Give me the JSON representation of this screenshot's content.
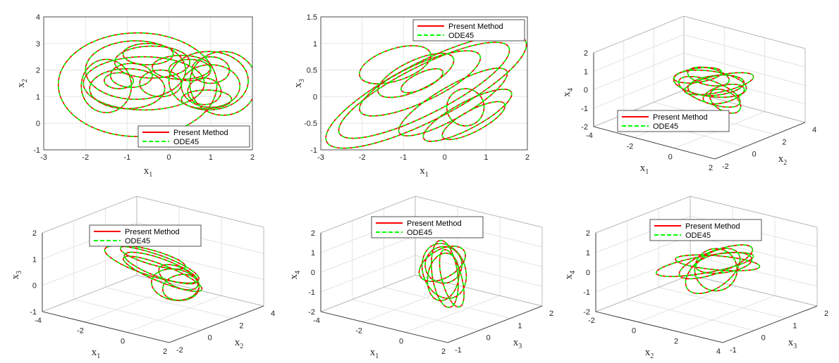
{
  "figure": {
    "legend_entries": [
      "Present Method",
      "ODE45"
    ],
    "colors": {
      "present": "#ff0000",
      "ode45": "#00ff00"
    }
  },
  "chart_data": [
    {
      "type": "line",
      "panel": "x1-x2",
      "xlabel": {
        "base": "x",
        "sub": "1"
      },
      "ylabel": {
        "base": "x",
        "sub": "2"
      },
      "xlim": [
        -3,
        2
      ],
      "ylim": [
        -1,
        4
      ],
      "xticks": [
        "-3",
        "-2",
        "-1",
        "0",
        "1",
        "2"
      ],
      "yticks": [
        "-1",
        "0",
        "1",
        "2",
        "3",
        "4"
      ],
      "grid": true,
      "legend": "bottom-right",
      "series": [
        {
          "name": "Present Method",
          "color": "#ff0000",
          "style": "solid"
        },
        {
          "name": "ODE45",
          "color": "#00ff00",
          "style": "dashed"
        }
      ],
      "loops": [
        {
          "cx": -0.75,
          "cy": 1.45,
          "rx": 1.9,
          "ry": 1.95
        },
        {
          "cx": -0.8,
          "cy": 2.0,
          "rx": 1.2,
          "ry": 1.1
        },
        {
          "cx": -0.6,
          "cy": 1.5,
          "rx": 1.45,
          "ry": 1.0
        },
        {
          "cx": -1.0,
          "cy": 1.3,
          "rx": 0.9,
          "ry": 0.75
        },
        {
          "cx": -0.9,
          "cy": 1.8,
          "rx": 0.5,
          "ry": 0.45
        },
        {
          "cx": -0.4,
          "cy": 2.3,
          "rx": 0.9,
          "ry": 0.6
        },
        {
          "cx": -1.2,
          "cy": 1.6,
          "rx": 0.35,
          "ry": 0.3
        },
        {
          "cx": 0.95,
          "cy": 1.6,
          "rx": 0.95,
          "ry": 1.1
        },
        {
          "cx": 1.0,
          "cy": 1.4,
          "rx": 0.7,
          "ry": 0.8
        },
        {
          "cx": 1.0,
          "cy": 2.0,
          "rx": 0.45,
          "ry": 0.5
        },
        {
          "cx": 0.5,
          "cy": 2.0,
          "rx": 0.5,
          "ry": 0.4
        },
        {
          "cx": 1.3,
          "cy": 1.5,
          "rx": 0.8,
          "ry": 1.2
        },
        {
          "cx": 0.3,
          "cy": 2.1,
          "rx": 0.7,
          "ry": 0.45
        },
        {
          "cx": -0.2,
          "cy": 1.5,
          "rx": 0.5,
          "ry": 0.5
        },
        {
          "cx": 0.85,
          "cy": 1.2,
          "rx": 0.4,
          "ry": 0.5
        },
        {
          "cx": -1.5,
          "cy": 1.4,
          "rx": 0.6,
          "ry": 1.0
        },
        {
          "cx": -0.5,
          "cy": 2.6,
          "rx": 0.6,
          "ry": 0.4
        },
        {
          "cx": 0.9,
          "cy": 0.9,
          "rx": 0.6,
          "ry": 0.35
        }
      ]
    },
    {
      "type": "line",
      "panel": "x1-x3",
      "xlabel": {
        "base": "x",
        "sub": "1"
      },
      "ylabel": {
        "base": "x",
        "sub": "3"
      },
      "xlim": [
        -3,
        2
      ],
      "ylim": [
        -1,
        1.5
      ],
      "xticks": [
        "-3",
        "-2",
        "-1",
        "0",
        "1",
        "2"
      ],
      "yticks": [
        "-1",
        "-0.5",
        "0",
        "0.5",
        "1",
        "1.5"
      ],
      "grid": true,
      "legend": "top-right",
      "series": [
        {
          "name": "Present Method",
          "color": "#ff0000",
          "style": "solid"
        },
        {
          "name": "ODE45",
          "color": "#00ff00",
          "style": "dashed"
        }
      ],
      "loops": [
        {
          "cx": -0.45,
          "cy": 0.1,
          "rx": 2.7,
          "ry": 0.55,
          "rot": -27
        },
        {
          "cx": -0.5,
          "cy": 0.12,
          "rx": 2.3,
          "ry": 0.45,
          "rot": -27
        },
        {
          "cx": -0.6,
          "cy": 0.25,
          "rx": 1.6,
          "ry": 0.35,
          "rot": -25
        },
        {
          "cx": -0.7,
          "cy": 0.4,
          "rx": 1.0,
          "ry": 0.28,
          "rot": -25
        },
        {
          "cx": -0.55,
          "cy": 0.3,
          "rx": 0.55,
          "ry": 0.15,
          "rot": -25
        },
        {
          "cx": 0.55,
          "cy": -0.35,
          "rx": 1.2,
          "ry": 0.25,
          "rot": -28
        },
        {
          "cx": 0.7,
          "cy": -0.45,
          "rx": 0.85,
          "ry": 0.2,
          "rot": -28
        },
        {
          "cx": 0.5,
          "cy": -0.2,
          "rx": 0.45,
          "ry": 0.35,
          "rot": 40
        },
        {
          "cx": -1.2,
          "cy": 0.6,
          "rx": 0.9,
          "ry": 0.3,
          "rot": -18
        },
        {
          "cx": 0.2,
          "cy": -0.1,
          "rx": 1.5,
          "ry": 0.3,
          "rot": -30
        }
      ]
    },
    {
      "type": "line",
      "panel": "x1-x2-x4",
      "xlabel": {
        "base": "x",
        "sub": "1"
      },
      "ylabel": {
        "base": "x",
        "sub": "2"
      },
      "zlabel": {
        "base": "x",
        "sub": "4"
      },
      "xlim": [
        -4,
        2
      ],
      "ylim": [
        -2,
        4
      ],
      "zlim": [
        -2,
        2
      ],
      "xticks": [
        "-4",
        "-2",
        "0",
        "2"
      ],
      "yticks": [
        "-2",
        "0",
        "2",
        "4"
      ],
      "zticks": [
        "-2",
        "-1",
        "0",
        "1",
        "2"
      ],
      "grid": true,
      "legend": "lower-left",
      "series": [
        {
          "name": "Present Method",
          "color": "#ff0000",
          "style": "solid"
        },
        {
          "name": "ODE45",
          "color": "#00ff00",
          "style": "dashed"
        }
      ]
    },
    {
      "type": "line",
      "panel": "x1-x2-x3",
      "xlabel": {
        "base": "x",
        "sub": "1"
      },
      "ylabel": {
        "base": "x",
        "sub": "2"
      },
      "zlabel": {
        "base": "x",
        "sub": "3"
      },
      "xlim": [
        -4,
        2
      ],
      "ylim": [
        -2,
        4
      ],
      "zlim": [
        -1,
        2
      ],
      "xticks": [
        "-4",
        "-2",
        "0",
        "2"
      ],
      "yticks": [
        "-2",
        "0",
        "2",
        "4"
      ],
      "zticks": [
        "-1",
        "0",
        "1",
        "2"
      ],
      "grid": true,
      "legend": "top",
      "series": [
        {
          "name": "Present Method",
          "color": "#ff0000",
          "style": "solid"
        },
        {
          "name": "ODE45",
          "color": "#00ff00",
          "style": "dashed"
        }
      ]
    },
    {
      "type": "line",
      "panel": "x1-x3-x4",
      "xlabel": {
        "base": "x",
        "sub": "1"
      },
      "ylabel": {
        "base": "x",
        "sub": "3"
      },
      "zlabel": {
        "base": "x",
        "sub": "4"
      },
      "xlim": [
        -4,
        2
      ],
      "ylim": [
        -1,
        2
      ],
      "zlim": [
        -2,
        2
      ],
      "xticks": [
        "-4",
        "-2",
        "0",
        "2"
      ],
      "yticks": [
        "-1",
        "0",
        "1",
        "2"
      ],
      "zticks": [
        "-2",
        "-1",
        "0",
        "1",
        "2"
      ],
      "grid": true,
      "legend": "top",
      "series": [
        {
          "name": "Present Method",
          "color": "#ff0000",
          "style": "solid"
        },
        {
          "name": "ODE45",
          "color": "#00ff00",
          "style": "dashed"
        }
      ]
    },
    {
      "type": "line",
      "panel": "x2-x3-x4",
      "xlabel": {
        "base": "x",
        "sub": "2"
      },
      "ylabel": {
        "base": "x",
        "sub": "3"
      },
      "zlabel": {
        "base": "x",
        "sub": "4"
      },
      "xlim": [
        -2,
        4
      ],
      "ylim": [
        -1,
        2
      ],
      "zlim": [
        -2,
        2
      ],
      "xticks": [
        "-2",
        "0",
        "2",
        "4"
      ],
      "yticks": [
        "-1",
        "0",
        "1",
        "2"
      ],
      "zticks": [
        "-2",
        "-1",
        "0",
        "1",
        "2"
      ],
      "grid": true,
      "legend": "top",
      "series": [
        {
          "name": "Present Method",
          "color": "#ff0000",
          "style": "solid"
        },
        {
          "name": "ODE45",
          "color": "#00ff00",
          "style": "dashed"
        }
      ]
    }
  ]
}
